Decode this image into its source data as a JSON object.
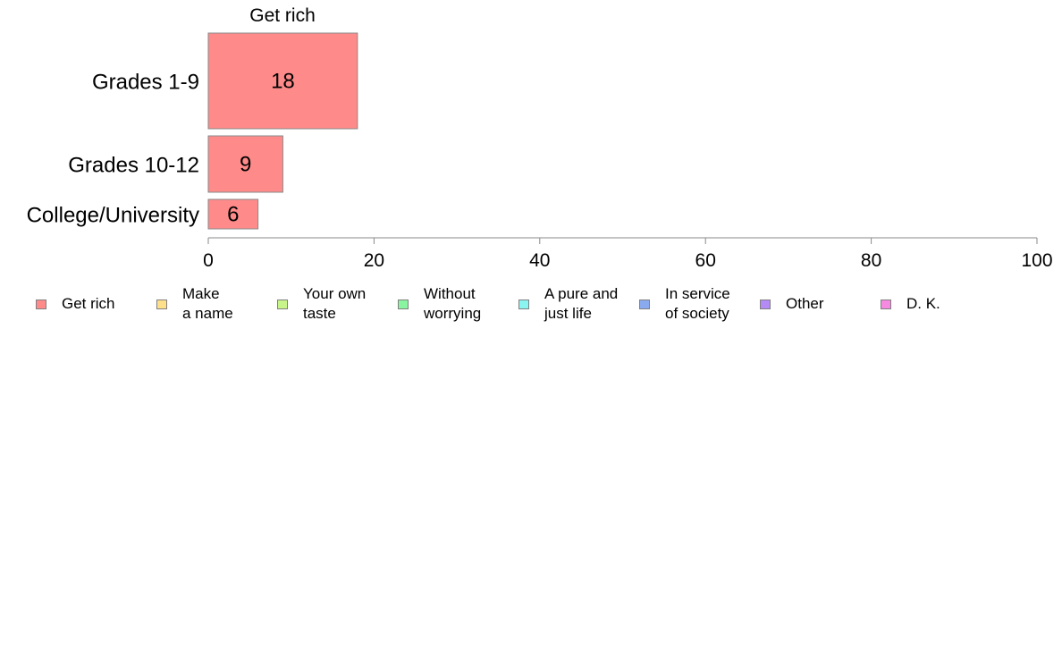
{
  "chart_data": {
    "type": "bar",
    "orientation": "horizontal",
    "stacked": true,
    "variable_width": true,
    "panel_title": "Get rich",
    "categories": [
      "Grades 1-9",
      "Grades 10-12",
      "College/University"
    ],
    "values": [
      18,
      9,
      6
    ],
    "xlim": [
      0,
      100
    ],
    "xticks": [
      "0",
      "20",
      "40",
      "60",
      "80",
      "100"
    ],
    "xlabel": "",
    "ylabel": "",
    "grid": false,
    "legend_position": "bottom",
    "legend": [
      {
        "label": "Get rich",
        "color": "#ff8a8a"
      },
      {
        "label": "Make\na name",
        "color": "#ffe08a"
      },
      {
        "label": "Your own\ntaste",
        "color": "#c8f58a"
      },
      {
        "label": "Without\nworrying",
        "color": "#8af5a0"
      },
      {
        "label": "A pure and\njust life",
        "color": "#8af5f0"
      },
      {
        "label": "In service\nof society",
        "color": "#8aaaf0"
      },
      {
        "label": "Other",
        "color": "#b48af5"
      },
      {
        "label": "D. K.",
        "color": "#f58ae0"
      }
    ]
  }
}
